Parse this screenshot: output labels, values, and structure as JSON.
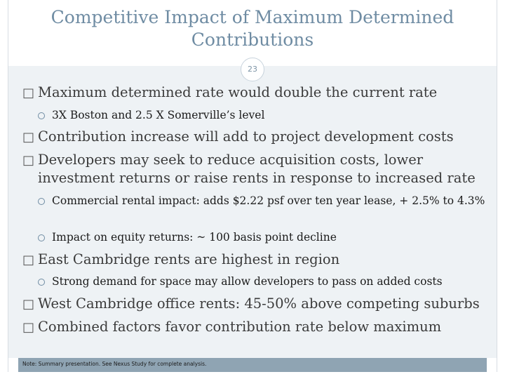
{
  "slide": {
    "title": "Competitive Impact of Maximum Determined Contributions",
    "page_number": "23",
    "footer_note": "Note: Summary presentation. See Nexus Study for complete analysis.",
    "bullet_glyph": "□",
    "colors": {
      "title": "#6f8ca3",
      "content_background": "#eef2f5",
      "footer_bar": "#8fa4b3"
    }
  },
  "bullets": [
    {
      "text": "Maximum determined rate would double the current rate",
      "sub": [
        "3X Boston and 2.5 X Somerville’s level"
      ]
    },
    {
      "text": "Contribution increase will add to project development costs",
      "sub": []
    },
    {
      "text": "Developers may seek to reduce acquisition costs, lower investment returns or raise rents in response to increased rate",
      "sub": [
        "Commercial rental impact: adds $2.22 psf over ten year lease, + 2.5% to 4.3%",
        "Impact on equity returns: ~ 100 basis point decline"
      ]
    },
    {
      "text": "East Cambridge rents are highest in region",
      "sub": [
        "Strong demand for space may allow developers to pass on added costs"
      ]
    },
    {
      "text": "West Cambridge office rents: 45-50% above competing suburbs",
      "sub": []
    },
    {
      "text": "Combined factors favor contribution rate below maximum",
      "sub": []
    }
  ]
}
